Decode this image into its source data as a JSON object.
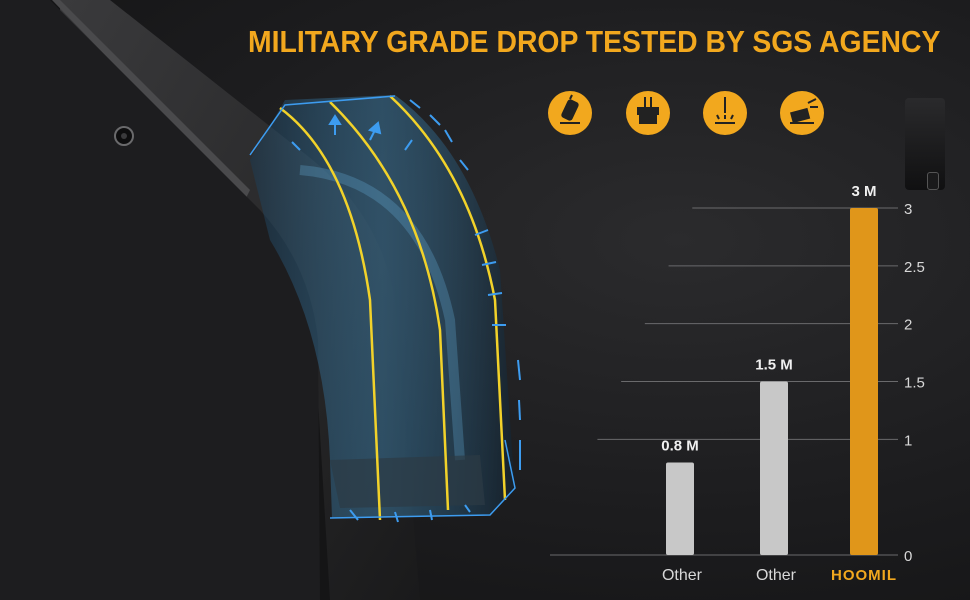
{
  "header": {
    "title": "MILITARY GRADE DROP TESTED BY SGS AGENCY"
  },
  "icons": [
    {
      "name": "phone-drop-icon"
    },
    {
      "name": "press-weight-icon"
    },
    {
      "name": "impact-icon"
    },
    {
      "name": "crash-icon"
    }
  ],
  "colors": {
    "accent": "#f2a81e",
    "highlight_bar": "#e0961a",
    "other_bar": "#c8c8c8",
    "arrow": "#3d9cf0",
    "edge": "#f2d22a"
  },
  "chart_data": {
    "type": "bar",
    "categories": [
      "Other",
      "Other",
      "HOOMIL"
    ],
    "values": [
      0.8,
      1.5,
      3
    ],
    "data_labels": [
      "0.8 M",
      "1.5 M",
      "3 M"
    ],
    "yticks": [
      "0",
      "1",
      "1.5",
      "2",
      "2.5",
      "3"
    ],
    "ylim": [
      0,
      3
    ],
    "grid": true,
    "highlight_index": 2
  }
}
